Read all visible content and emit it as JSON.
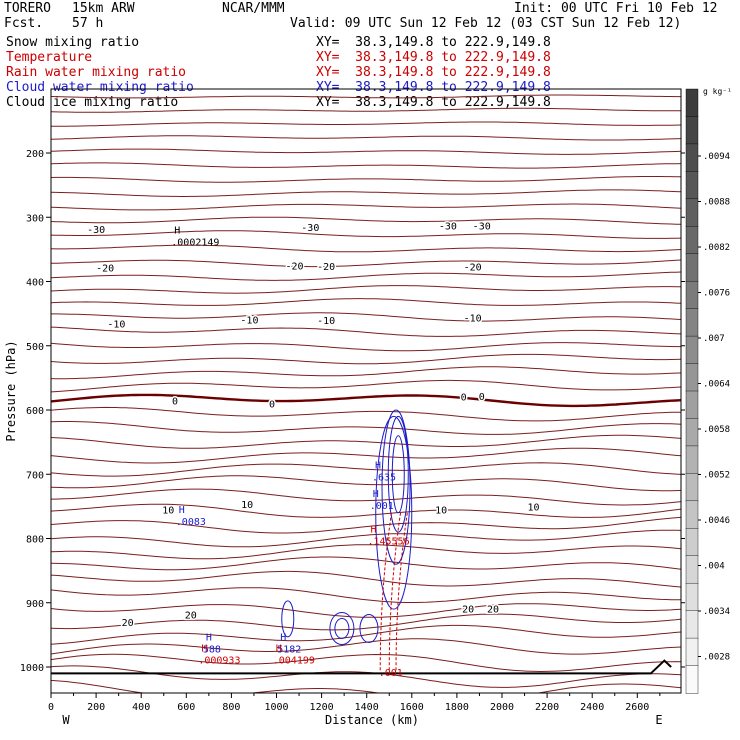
{
  "header": {
    "model": "TORERO",
    "resolution": "15km ARW",
    "org": "NCAR/MMM",
    "init": "Init: 00 UTC Fri 10 Feb 12",
    "fcst_label": "Fcst.",
    "fcst_value": "57 h",
    "valid": "Valid: 09 UTC Sun 12 Feb 12 (03 CST Sun 12 Feb 12)"
  },
  "fields": [
    {
      "name": "Snow mixing ratio",
      "xy": "XY=  38.3,149.8 to 222.9,149.8",
      "color": "#000000"
    },
    {
      "name": "Temperature",
      "xy": "XY=  38.3,149.8 to 222.9,149.8",
      "color": "#cc0000"
    },
    {
      "name": "Rain water mixing ratio",
      "xy": "XY=  38.3,149.8 to 222.9,149.8",
      "color": "#cc0000"
    },
    {
      "name": "Cloud water mixing ratio",
      "xy": "XY=  38.3,149.8 to 222.9,149.8",
      "color": "#1a1acc"
    },
    {
      "name": "Cloud ice mixing ratio",
      "xy": "XY=  38.3,149.8 to 222.9,149.8",
      "color": "#000000"
    }
  ],
  "chart_data": {
    "type": "cross-section",
    "xlabel": "Distance (km)",
    "ylabel": "Pressure (hPa)",
    "xlim": [
      0,
      2740
    ],
    "ylim": [
      1050,
      100
    ],
    "x_ticks": [
      0,
      200,
      400,
      600,
      800,
      1000,
      1200,
      1400,
      1600,
      1800,
      2000,
      2200,
      2400,
      2600
    ],
    "y_ticks": [
      200,
      300,
      400,
      500,
      600,
      700,
      800,
      900,
      1000
    ],
    "x_left_label": "W",
    "x_right_label": "E",
    "colorbar": {
      "unit": "g kg⁻¹",
      "ticks": [
        ".0094",
        ".0088",
        ".0082",
        ".0076",
        ".007",
        ".0064",
        ".0058",
        ".0052",
        ".0046",
        ".004",
        ".0034",
        ".0028"
      ]
    },
    "temperature_labels": [
      {
        "label": "-30",
        "x": 200,
        "p": 318
      },
      {
        "label": "-30",
        "x": 1150,
        "p": 315
      },
      {
        "label": "-30",
        "x": 1760,
        "p": 313
      },
      {
        "label": "-30",
        "x": 1910,
        "p": 313
      },
      {
        "label": "-20",
        "x": 240,
        "p": 378
      },
      {
        "label": "-20",
        "x": 1080,
        "p": 375
      },
      {
        "label": "-20",
        "x": 1220,
        "p": 376
      },
      {
        "label": "-20",
        "x": 1870,
        "p": 377
      },
      {
        "label": "-10",
        "x": 290,
        "p": 465
      },
      {
        "label": "-10",
        "x": 880,
        "p": 459
      },
      {
        "label": "-10",
        "x": 1220,
        "p": 460
      },
      {
        "label": "-10",
        "x": 1870,
        "p": 456
      },
      {
        "label": "0",
        "x": 550,
        "p": 585
      },
      {
        "label": "0",
        "x": 980,
        "p": 590
      },
      {
        "label": "0",
        "x": 1830,
        "p": 579
      },
      {
        "label": "0",
        "x": 1910,
        "p": 578
      },
      {
        "label": "10",
        "x": 520,
        "p": 755
      },
      {
        "label": "10",
        "x": 870,
        "p": 746
      },
      {
        "label": "10",
        "x": 1730,
        "p": 755
      },
      {
        "label": "10",
        "x": 2140,
        "p": 750
      },
      {
        "label": "20",
        "x": 340,
        "p": 930
      },
      {
        "label": "20",
        "x": 620,
        "p": 918
      },
      {
        "label": "20",
        "x": 1850,
        "p": 909
      },
      {
        "label": "20",
        "x": 1960,
        "p": 909
      }
    ],
    "max_labels": [
      {
        "marker": "H",
        "value": ".0002149",
        "x": 560,
        "p": 335,
        "color": "#000000"
      },
      {
        "marker": "H",
        "value": ".0083",
        "x": 580,
        "p": 770,
        "color": "#1a1acc"
      },
      {
        "marker": "H",
        "value": ".635",
        "x": 1450,
        "p": 700,
        "color": "#1a1acc"
      },
      {
        "marker": "H",
        "value": ".001",
        "x": 1440,
        "p": 745,
        "color": "#1a1acc"
      },
      {
        "marker": "H",
        "value": ".145556",
        "x": 1430,
        "p": 800,
        "color": "#cc0000"
      },
      {
        "marker": "H",
        "value": "588",
        "x": 700,
        "p": 968,
        "color": "#1a1acc"
      },
      {
        "marker": "H",
        "value": ".000933",
        "x": 680,
        "p": 985,
        "color": "#cc0000"
      },
      {
        "marker": "H",
        "value": "5182",
        "x": 1030,
        "p": 968,
        "color": "#1a1acc"
      },
      {
        "marker": "H",
        "value": ".004199",
        "x": 1010,
        "p": 985,
        "color": "#cc0000"
      },
      {
        "marker": "",
        "value": ".001",
        "x": 1480,
        "p": 1005,
        "color": "#cc0000"
      }
    ]
  }
}
